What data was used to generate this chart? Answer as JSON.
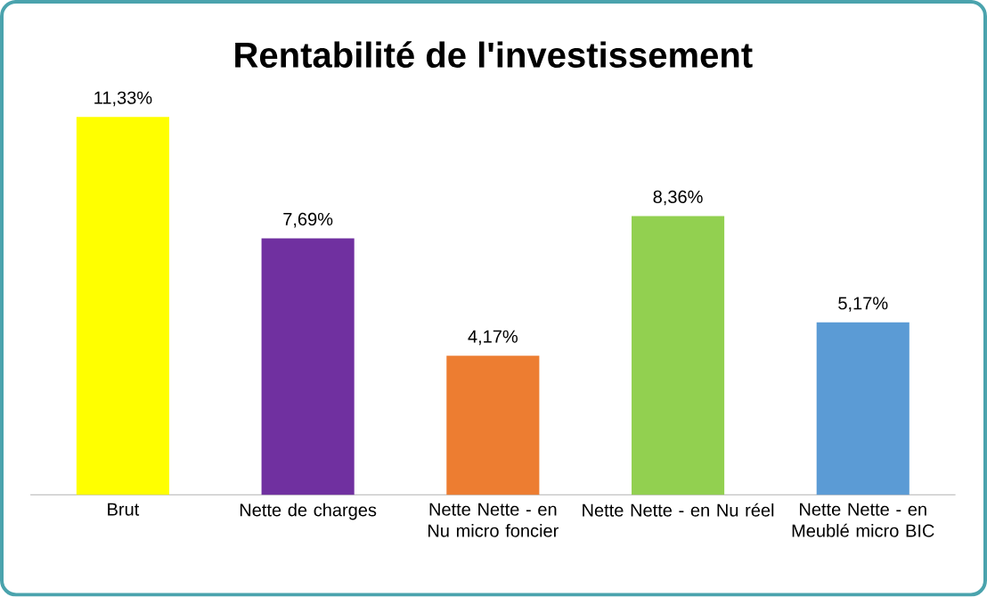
{
  "chart_data": {
    "type": "bar",
    "title": "Rentabilité de l'investissement",
    "categories": [
      "Brut",
      "Nette de charges",
      "Nette Nette - en Nu micro foncier",
      "Nette Nette - en Nu réel",
      "Nette Nette - en Meublé micro BIC"
    ],
    "values": [
      11.33,
      7.69,
      4.17,
      8.36,
      5.17
    ],
    "colors": [
      "#ffff00",
      "#7030a0",
      "#ed7d31",
      "#92d050",
      "#5b9bd5"
    ],
    "value_labels": [
      "11,33%",
      "7,69%",
      "4,17%",
      "8,36%",
      "5,17%"
    ]
  }
}
